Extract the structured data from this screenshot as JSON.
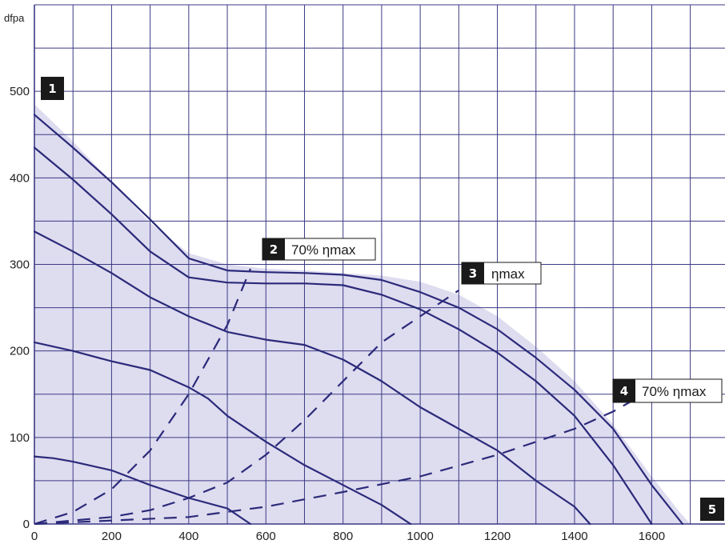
{
  "chart_data": {
    "type": "line",
    "title": "",
    "xlabel": "",
    "ylabel": "dfpa",
    "xlim": [
      0,
      1790
    ],
    "ylim": [
      0,
      600
    ],
    "x_ticks": [
      0,
      200,
      400,
      600,
      800,
      1000,
      1200,
      1400,
      1600
    ],
    "x_tick_labels": [
      "0",
      "200",
      "400",
      "600",
      "800",
      "1000",
      "1200",
      "1400",
      "1600"
    ],
    "y_ticks": [
      0,
      100,
      200,
      300,
      400,
      500
    ],
    "y_tick_labels": [
      "0",
      "100",
      "200",
      "300",
      "400",
      "500"
    ],
    "grid": true,
    "colors": {
      "curve": "#2b2a7a",
      "grid": "#3b3a85",
      "envelope": "#dedcef",
      "badge": "#1a1a1a"
    },
    "envelope": [
      [
        0,
        485
      ],
      [
        100,
        442
      ],
      [
        200,
        395
      ],
      [
        300,
        348
      ],
      [
        400,
        313
      ],
      [
        500,
        300
      ],
      [
        600,
        295
      ],
      [
        700,
        293
      ],
      [
        800,
        290
      ],
      [
        900,
        287
      ],
      [
        1000,
        280
      ],
      [
        1100,
        265
      ],
      [
        1200,
        240
      ],
      [
        1300,
        205
      ],
      [
        1400,
        165
      ],
      [
        1500,
        115
      ],
      [
        1600,
        55
      ],
      [
        1670,
        15
      ],
      [
        1700,
        0
      ]
    ],
    "series": [
      {
        "style": "solid",
        "points": [
          [
            0,
            473
          ],
          [
            100,
            435
          ],
          [
            200,
            395
          ],
          [
            300,
            352
          ],
          [
            400,
            307
          ],
          [
            500,
            293
          ],
          [
            600,
            291
          ],
          [
            700,
            290
          ],
          [
            800,
            288
          ],
          [
            900,
            282
          ],
          [
            1000,
            268
          ],
          [
            1100,
            250
          ],
          [
            1200,
            225
          ],
          [
            1300,
            192
          ],
          [
            1400,
            155
          ],
          [
            1500,
            110
          ],
          [
            1600,
            45
          ],
          [
            1680,
            0
          ]
        ]
      },
      {
        "style": "solid",
        "points": [
          [
            0,
            435
          ],
          [
            100,
            398
          ],
          [
            200,
            358
          ],
          [
            300,
            315
          ],
          [
            400,
            285
          ],
          [
            500,
            279
          ],
          [
            600,
            278
          ],
          [
            700,
            278
          ],
          [
            800,
            276
          ],
          [
            900,
            265
          ],
          [
            1000,
            248
          ],
          [
            1100,
            225
          ],
          [
            1200,
            198
          ],
          [
            1300,
            165
          ],
          [
            1400,
            125
          ],
          [
            1500,
            68
          ],
          [
            1600,
            0
          ]
        ]
      },
      {
        "style": "solid",
        "points": [
          [
            0,
            338
          ],
          [
            100,
            315
          ],
          [
            200,
            290
          ],
          [
            300,
            262
          ],
          [
            400,
            240
          ],
          [
            500,
            222
          ],
          [
            600,
            213
          ],
          [
            700,
            207
          ],
          [
            800,
            190
          ],
          [
            900,
            165
          ],
          [
            1000,
            135
          ],
          [
            1100,
            110
          ],
          [
            1200,
            85
          ],
          [
            1300,
            50
          ],
          [
            1400,
            20
          ],
          [
            1440,
            0
          ]
        ]
      },
      {
        "style": "solid",
        "points": [
          [
            0,
            210
          ],
          [
            100,
            200
          ],
          [
            200,
            188
          ],
          [
            300,
            178
          ],
          [
            400,
            158
          ],
          [
            450,
            145
          ],
          [
            500,
            125
          ],
          [
            600,
            95
          ],
          [
            700,
            68
          ],
          [
            800,
            45
          ],
          [
            900,
            22
          ],
          [
            975,
            0
          ]
        ]
      },
      {
        "style": "solid",
        "points": [
          [
            0,
            78
          ],
          [
            50,
            76
          ],
          [
            100,
            72
          ],
          [
            200,
            62
          ],
          [
            300,
            45
          ],
          [
            400,
            30
          ],
          [
            500,
            18
          ],
          [
            560,
            0
          ]
        ]
      },
      {
        "style": "dashed",
        "points": [
          [
            0,
            0
          ],
          [
            100,
            14
          ],
          [
            200,
            40
          ],
          [
            300,
            85
          ],
          [
            400,
            150
          ],
          [
            500,
            230
          ],
          [
            560,
            295
          ]
        ]
      },
      {
        "style": "dashed",
        "points": [
          [
            0,
            0
          ],
          [
            200,
            8
          ],
          [
            300,
            16
          ],
          [
            400,
            30
          ],
          [
            500,
            48
          ],
          [
            600,
            80
          ],
          [
            700,
            120
          ],
          [
            800,
            165
          ],
          [
            900,
            210
          ],
          [
            1000,
            240
          ],
          [
            1100,
            270
          ]
        ]
      },
      {
        "style": "dashed",
        "points": [
          [
            0,
            0
          ],
          [
            400,
            8
          ],
          [
            600,
            20
          ],
          [
            800,
            37
          ],
          [
            1000,
            55
          ],
          [
            1200,
            80
          ],
          [
            1400,
            110
          ],
          [
            1500,
            130
          ],
          [
            1600,
            155
          ]
        ]
      }
    ],
    "callouts": [
      {
        "num": "1",
        "text": ""
      },
      {
        "num": "2",
        "text": "70% ηmax"
      },
      {
        "num": "3",
        "text": "ηmax"
      },
      {
        "num": "4",
        "text": "70% ηmax"
      },
      {
        "num": "5",
        "text": ""
      }
    ]
  }
}
